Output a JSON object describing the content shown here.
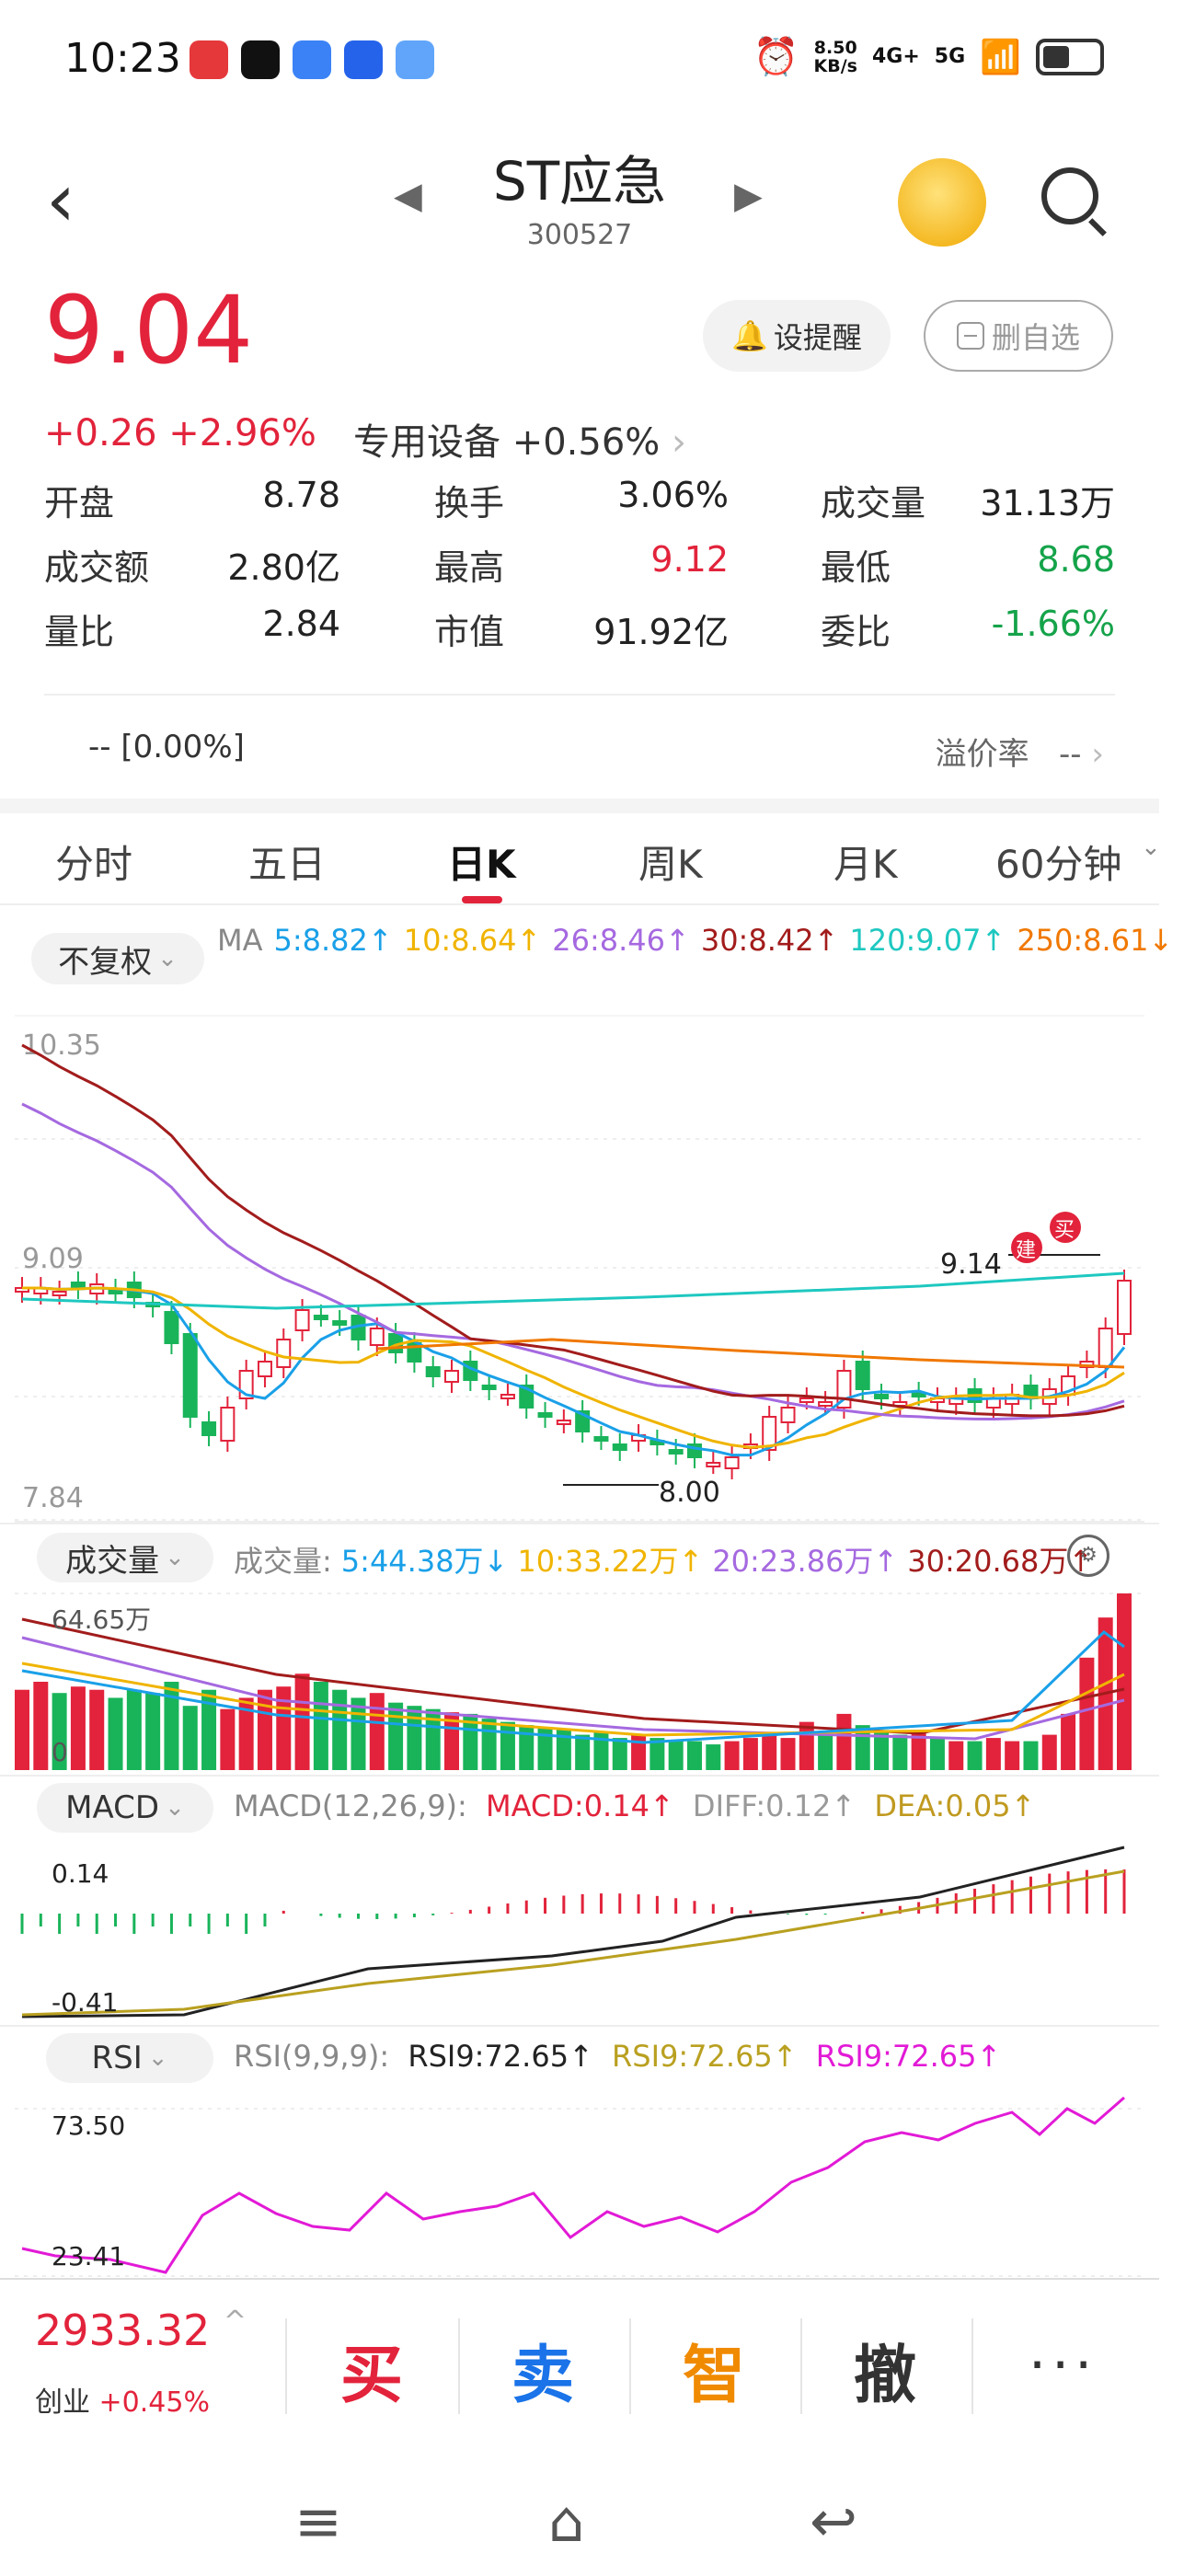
{
  "status": {
    "time": "10:23",
    "net_speed_top": "8.50",
    "net_speed_bottom": "KB/s",
    "sig1": "4G+",
    "sig2": "5G",
    "app_colors": [
      "#e5383b",
      "#111111",
      "#3b82f6",
      "#2563eb",
      "#3b82f6"
    ]
  },
  "header": {
    "back_icon": "‹",
    "prev_icon": "◀",
    "next_icon": "▶",
    "name": "ST应急",
    "code": "300527"
  },
  "quote": {
    "price": "9.04",
    "change": "+0.26  +2.96%",
    "sector_name": "专用设备",
    "sector_change": "+0.56%",
    "sector_arrow": "›",
    "btn_alert": "设提醒",
    "btn_delete": "删自选",
    "rows": [
      [
        {
          "l": "开盘",
          "v": "8.78",
          "c": ""
        },
        {
          "l": "换手",
          "v": "3.06%",
          "c": ""
        },
        {
          "l": "成交量",
          "v": "31.13万",
          "c": ""
        }
      ],
      [
        {
          "l": "成交额",
          "v": "2.80亿",
          "c": ""
        },
        {
          "l": "最高",
          "v": "9.12",
          "c": "red"
        },
        {
          "l": "最低",
          "v": "8.68",
          "c": "green"
        }
      ],
      [
        {
          "l": "量比",
          "v": "2.84",
          "c": ""
        },
        {
          "l": "市值",
          "v": "91.92亿",
          "c": ""
        },
        {
          "l": "委比",
          "v": "-1.66%",
          "c": "green"
        }
      ]
    ],
    "premium_left": "--  [0.00%]",
    "premium_label": "溢价率",
    "premium_value": "--",
    "premium_arrow": "›"
  },
  "tabs": [
    "分时",
    "五日",
    "日K",
    "周K",
    "月K",
    "60分钟"
  ],
  "tab_dropdown": "⌄",
  "active_tab": 2,
  "kline": {
    "fuquan": "不复权",
    "ma_label": "MA",
    "ma": [
      {
        "t": "5:8.82↑",
        "c": "#1aa0e8"
      },
      {
        "t": "10:8.64↑",
        "c": "#f0b400"
      },
      {
        "t": "26:8.46↑",
        "c": "#a569e0"
      },
      {
        "t": "30:8.42↑",
        "c": "#a21c1c"
      },
      {
        "t": "120:9.07↑",
        "c": "#1ec8c0"
      },
      {
        "t": "250:8.61↓",
        "c": "#f07800"
      }
    ],
    "y_high": "10.35",
    "y_mid": "9.09",
    "y_low": "7.84",
    "max_label": "9.14",
    "min_label": "8.00",
    "badge_jian": "建",
    "badge_mai": "买"
  },
  "chart_data": {
    "type": "candlestick",
    "series": [
      {
        "name": "MA5",
        "values": []
      },
      {
        "name": "MA10",
        "values": []
      },
      {
        "name": "MA26",
        "values": []
      },
      {
        "name": "MA30",
        "values": []
      },
      {
        "name": "MA120",
        "values": []
      },
      {
        "name": "MA250",
        "values": []
      }
    ],
    "ylim": [
      7.84,
      10.35
    ],
    "price_high": 9.14,
    "price_low": 8.0
  },
  "volume": {
    "label": "成交量",
    "title": "成交量:",
    "items": [
      {
        "t": "5:44.38万↓",
        "c": "#1aa0e8"
      },
      {
        "t": "10:33.22万↑",
        "c": "#f0b400"
      },
      {
        "t": "20:23.86万↑",
        "c": "#a569e0"
      },
      {
        "t": "30:20.68万↑",
        "c": "#a21c1c"
      }
    ],
    "y_top": "64.65万",
    "y_bottom": "0"
  },
  "macd": {
    "label": "MACD",
    "params": "MACD(12,26,9):",
    "macd": "MACD:0.14↑",
    "diff": "DIFF:0.12↑",
    "dea": "DEA:0.05↑",
    "y_top": "0.14",
    "y_bottom": "-0.41"
  },
  "rsi": {
    "label": "RSI",
    "params": "RSI(9,9,9):",
    "v1": "RSI9:72.65↑",
    "v2": "RSI9:72.65↑",
    "v3": "RSI9:72.65↑",
    "y_top": "73.50",
    "y_bottom": "23.41"
  },
  "bottom": {
    "index_value": "2933.32",
    "index_name": "创业",
    "index_change": "+0.45%",
    "buy": "买",
    "sell": "卖",
    "smart": "智",
    "cancel": "撤",
    "more": "···"
  },
  "sysnav": {
    "menu": "≡",
    "home": "⌂",
    "back": "↩"
  }
}
